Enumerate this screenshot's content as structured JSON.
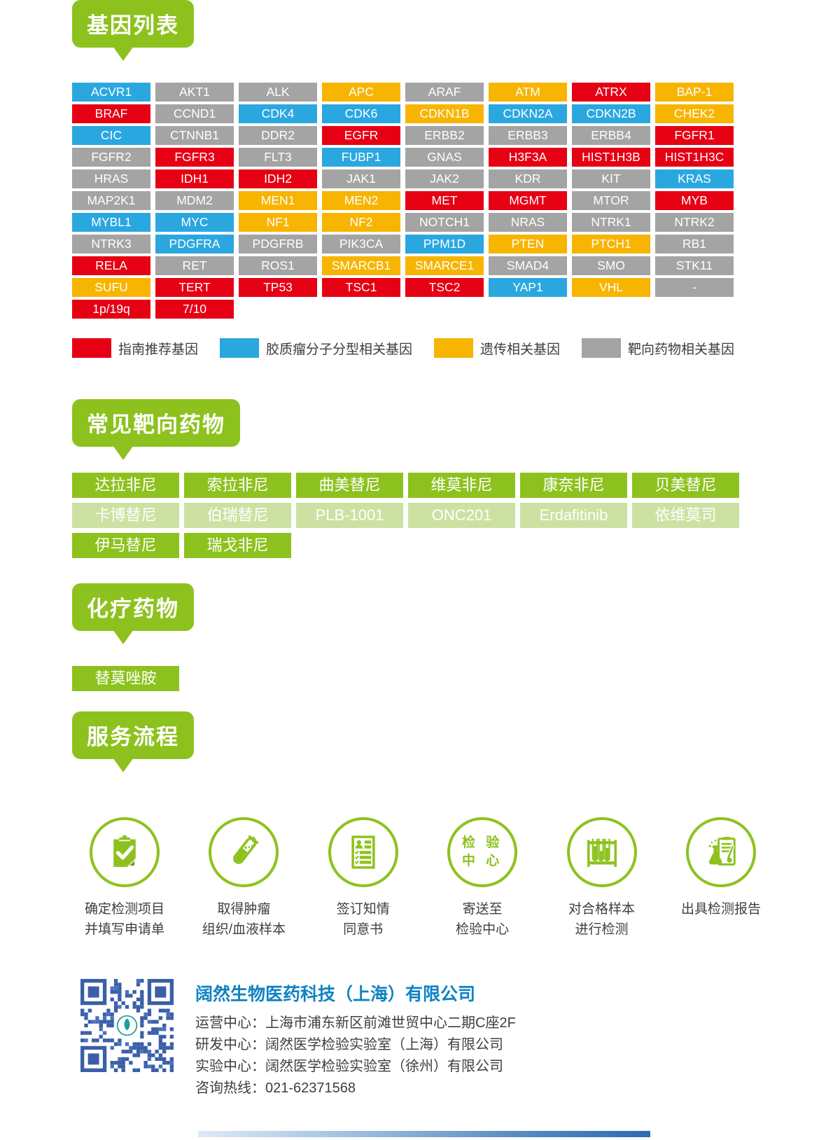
{
  "colors": {
    "green": "#8dc21e",
    "light_green": "#cde2a2",
    "red": "#e60014",
    "blue": "#2ba7e0",
    "orange": "#f7b400",
    "gray": "#a4a4a5",
    "company_blue": "#0f82c4",
    "qr_blue": "#3a5fa8"
  },
  "gene_section": {
    "title": "基因列表",
    "genes": [
      {
        "label": "ACVR1",
        "category": "blue"
      },
      {
        "label": "AKT1",
        "category": "gray"
      },
      {
        "label": "ALK",
        "category": "gray"
      },
      {
        "label": "APC",
        "category": "orange"
      },
      {
        "label": "ARAF",
        "category": "gray"
      },
      {
        "label": "ATM",
        "category": "orange"
      },
      {
        "label": "ATRX",
        "category": "red"
      },
      {
        "label": "BAP-1",
        "category": "orange"
      },
      {
        "label": "BRAF",
        "category": "red"
      },
      {
        "label": "CCND1",
        "category": "gray"
      },
      {
        "label": "CDK4",
        "category": "blue"
      },
      {
        "label": "CDK6",
        "category": "blue"
      },
      {
        "label": "CDKN1B",
        "category": "orange"
      },
      {
        "label": "CDKN2A",
        "category": "blue"
      },
      {
        "label": "CDKN2B",
        "category": "blue"
      },
      {
        "label": "CHEK2",
        "category": "orange"
      },
      {
        "label": "CIC",
        "category": "blue"
      },
      {
        "label": "CTNNB1",
        "category": "gray"
      },
      {
        "label": "DDR2",
        "category": "gray"
      },
      {
        "label": "EGFR",
        "category": "red"
      },
      {
        "label": "ERBB2",
        "category": "gray"
      },
      {
        "label": "ERBB3",
        "category": "gray"
      },
      {
        "label": "ERBB4",
        "category": "gray"
      },
      {
        "label": "FGFR1",
        "category": "red"
      },
      {
        "label": "FGFR2",
        "category": "gray"
      },
      {
        "label": "FGFR3",
        "category": "red"
      },
      {
        "label": "FLT3",
        "category": "gray"
      },
      {
        "label": "FUBP1",
        "category": "blue"
      },
      {
        "label": "GNAS",
        "category": "gray"
      },
      {
        "label": "H3F3A",
        "category": "red"
      },
      {
        "label": "HIST1H3B",
        "category": "red"
      },
      {
        "label": "HIST1H3C",
        "category": "red"
      },
      {
        "label": "HRAS",
        "category": "gray"
      },
      {
        "label": "IDH1",
        "category": "red"
      },
      {
        "label": "IDH2",
        "category": "red"
      },
      {
        "label": "JAK1",
        "category": "gray"
      },
      {
        "label": "JAK2",
        "category": "gray"
      },
      {
        "label": "KDR",
        "category": "gray"
      },
      {
        "label": "KIT",
        "category": "gray"
      },
      {
        "label": "KRAS",
        "category": "blue"
      },
      {
        "label": "MAP2K1",
        "category": "gray"
      },
      {
        "label": "MDM2",
        "category": "gray"
      },
      {
        "label": "MEN1",
        "category": "orange"
      },
      {
        "label": "MEN2",
        "category": "orange"
      },
      {
        "label": "MET",
        "category": "red"
      },
      {
        "label": "MGMT",
        "category": "red"
      },
      {
        "label": "MTOR",
        "category": "gray"
      },
      {
        "label": "MYB",
        "category": "red"
      },
      {
        "label": "MYBL1",
        "category": "blue"
      },
      {
        "label": "MYC",
        "category": "blue"
      },
      {
        "label": "NF1",
        "category": "orange"
      },
      {
        "label": "NF2",
        "category": "orange"
      },
      {
        "label": "NOTCH1",
        "category": "gray"
      },
      {
        "label": "NRAS",
        "category": "gray"
      },
      {
        "label": "NTRK1",
        "category": "gray"
      },
      {
        "label": "NTRK2",
        "category": "gray"
      },
      {
        "label": "NTRK3",
        "category": "gray"
      },
      {
        "label": "PDGFRA",
        "category": "blue"
      },
      {
        "label": "PDGFRB",
        "category": "gray"
      },
      {
        "label": "PIK3CA",
        "category": "gray"
      },
      {
        "label": "PPM1D",
        "category": "blue"
      },
      {
        "label": "PTEN",
        "category": "orange"
      },
      {
        "label": "PTCH1",
        "category": "orange"
      },
      {
        "label": "RB1",
        "category": "gray"
      },
      {
        "label": "RELA",
        "category": "red"
      },
      {
        "label": "RET",
        "category": "gray"
      },
      {
        "label": "ROS1",
        "category": "gray"
      },
      {
        "label": "SMARCB1",
        "category": "orange"
      },
      {
        "label": "SMARCE1",
        "category": "orange"
      },
      {
        "label": "SMAD4",
        "category": "gray"
      },
      {
        "label": "SMO",
        "category": "gray"
      },
      {
        "label": "STK11",
        "category": "gray"
      },
      {
        "label": "SUFU",
        "category": "orange"
      },
      {
        "label": "TERT",
        "category": "red"
      },
      {
        "label": "TP53",
        "category": "red"
      },
      {
        "label": "TSC1",
        "category": "red"
      },
      {
        "label": "TSC2",
        "category": "red"
      },
      {
        "label": "YAP1",
        "category": "blue"
      },
      {
        "label": "VHL",
        "category": "orange"
      },
      {
        "label": "-",
        "category": "gray"
      },
      {
        "label": "1p/19q",
        "category": "red"
      },
      {
        "label": "7/10",
        "category": "red"
      }
    ],
    "legend": [
      {
        "label": "指南推荐基因",
        "category": "red"
      },
      {
        "label": "胶质瘤分子分型相关基因",
        "category": "blue"
      },
      {
        "label": "遗传相关基因",
        "category": "orange"
      },
      {
        "label": "靶向药物相关基因",
        "category": "gray"
      }
    ]
  },
  "targeted_section": {
    "title": "常见靶向药物",
    "drugs": [
      {
        "label": "达拉非尼",
        "tone": "bright"
      },
      {
        "label": "索拉非尼",
        "tone": "bright"
      },
      {
        "label": "曲美替尼",
        "tone": "bright"
      },
      {
        "label": "维莫非尼",
        "tone": "bright"
      },
      {
        "label": "康奈非尼",
        "tone": "bright"
      },
      {
        "label": "贝美替尼",
        "tone": "bright"
      },
      {
        "label": "卡博替尼",
        "tone": "light"
      },
      {
        "label": "伯瑞替尼",
        "tone": "light"
      },
      {
        "label": "PLB-1001",
        "tone": "light"
      },
      {
        "label": "ONC201",
        "tone": "light"
      },
      {
        "label": "Erdafitinib",
        "tone": "light"
      },
      {
        "label": "依维莫司",
        "tone": "light"
      },
      {
        "label": "伊马替尼",
        "tone": "bright"
      },
      {
        "label": "瑞戈非尼",
        "tone": "bright"
      }
    ]
  },
  "chemo_section": {
    "title": "化疗药物",
    "drugs": [
      {
        "label": "替莫唑胺",
        "tone": "bright"
      }
    ]
  },
  "process_section": {
    "title": "服务流程",
    "steps": [
      {
        "icon": "clipboard-check-icon",
        "line1": "确定检测项目",
        "line2": "并填写申请单"
      },
      {
        "icon": "test-tube-icon",
        "line1": "取得肿瘤",
        "line2": "组织/血液样本"
      },
      {
        "icon": "consent-form-icon",
        "line1": "签订知情",
        "line2": "同意书"
      },
      {
        "icon": "test-center-label-icon",
        "icon_lines": [
          "检 验",
          "中 心"
        ],
        "line1": "寄送至",
        "line2": "检验中心"
      },
      {
        "icon": "tube-rack-icon",
        "line1": "对合格样本",
        "line2": "进行检测"
      },
      {
        "icon": "report-icon",
        "line1": "出具检测报告",
        "line2": ""
      }
    ]
  },
  "footer": {
    "company": "阔然生物医药科技（上海）有限公司",
    "lines": [
      "运营中心：上海市浦东新区前滩世贸中心二期C座2F",
      "研发中心：阔然医学检验实验室（上海）有限公司",
      "实验中心：阔然医学检验实验室（徐州）有限公司",
      "咨询热线：021-62371568"
    ]
  }
}
